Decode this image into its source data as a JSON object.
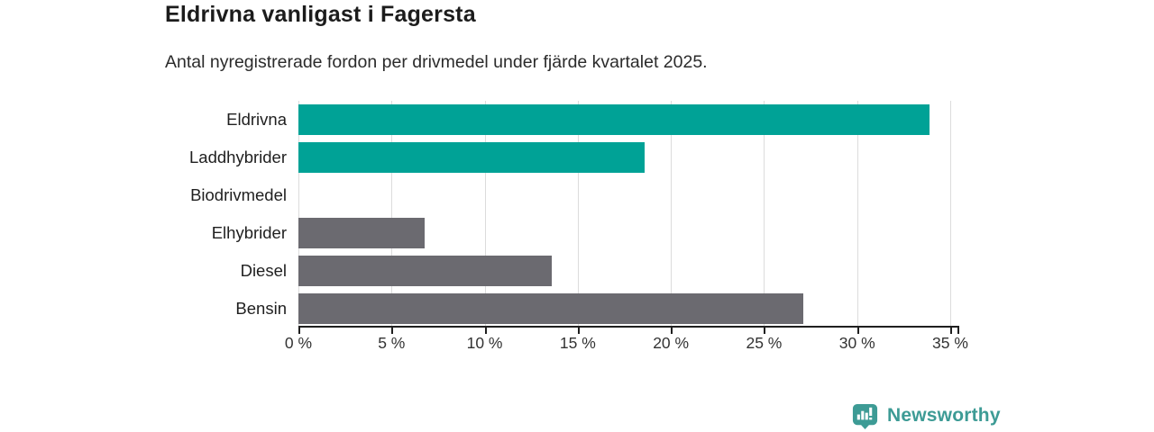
{
  "header": {
    "title": "Eldrivna vanligast i Fagersta",
    "subtitle": "Antal nyregistrerade fordon per drivmedel under fjärde kvartalet 2025."
  },
  "chart_data": {
    "type": "bar",
    "orientation": "horizontal",
    "title": "Eldrivna vanligast i Fagersta",
    "subtitle": "Antal nyregistrerade fordon per drivmedel under fjärde kvartalet 2025.",
    "categories": [
      "Eldrivna",
      "Laddhybrider",
      "Biodrivmedel",
      "Elhybrider",
      "Diesel",
      "Bensin"
    ],
    "values": [
      33.9,
      18.6,
      0,
      6.8,
      13.6,
      27.1
    ],
    "unit": "%",
    "xlim": [
      0,
      35
    ],
    "x_ticks": [
      0,
      5,
      10,
      15,
      20,
      25,
      30,
      35
    ],
    "x_tick_labels": [
      "0 %",
      "5 %",
      "10 %",
      "15 %",
      "20 %",
      "25 %",
      "30 %",
      "35 %"
    ],
    "bar_colors": [
      "#00a296",
      "#00a296",
      "#6b6a70",
      "#6b6a70",
      "#6b6a70",
      "#6b6a70"
    ],
    "highlight_color": "#00a296",
    "default_color": "#6b6a70",
    "gridline_color": "#dcdcdc",
    "axis_color": "#1f1f1f",
    "grid": true,
    "legend": false
  },
  "footer": {
    "brand": "Newsworthy",
    "brand_color": "#3d9b95",
    "logo_icon": "bar-chart-badge-icon"
  }
}
